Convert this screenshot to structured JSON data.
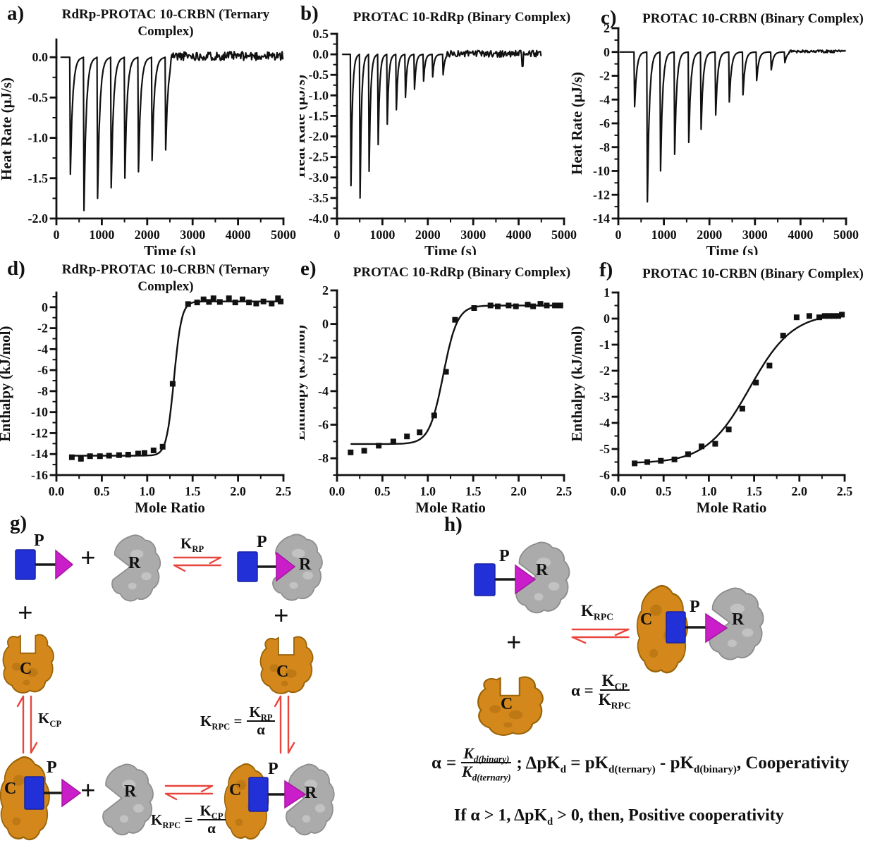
{
  "chart_data": [
    {
      "id": "a",
      "panel_letter": "a)",
      "type": "line",
      "subtype": "itc-thermogram",
      "title_lines": [
        "RdRp-PROTAC 10-CRBN (Ternary",
        "Complex)"
      ],
      "xlabel": "Time (s)",
      "ylabel": "Heat Rate (μJ/s)",
      "xlim": [
        0,
        5000
      ],
      "ylim": [
        -2.0,
        0.22
      ],
      "xticks": [
        0,
        1000,
        2000,
        3000,
        4000,
        5000
      ],
      "yticks": [
        0.0,
        -0.5,
        -1.0,
        -1.5,
        -2.0
      ],
      "xminor": 500,
      "yminor": 0.25,
      "x_decimals": 0,
      "y_decimals": 1,
      "spikes": {
        "times": [
          300,
          600,
          900,
          1200,
          1500,
          1800,
          2100,
          2400
        ],
        "depths": [
          -1.45,
          -1.9,
          -1.75,
          -1.62,
          -1.5,
          -1.42,
          -1.28,
          -1.15
        ]
      },
      "trace": {
        "start": 90,
        "end": 5000,
        "noise_start": 2540,
        "noise_amp": 0.055,
        "noise_mean": 0.015,
        "recovery_tau": 70,
        "seed": 11
      },
      "line_color": "#111111"
    },
    {
      "id": "b",
      "panel_letter": "b)",
      "type": "line",
      "subtype": "itc-thermogram",
      "title_lines": [
        "PROTAC 10-RdRp (Binary Complex)"
      ],
      "xlabel": "Time (s)",
      "ylabel": "Heat Rate (μJ/s)",
      "xlim": [
        0,
        5000
      ],
      "ylim": [
        -4.0,
        0.5
      ],
      "xticks": [
        0,
        1000,
        2000,
        3000,
        4000,
        5000
      ],
      "yticks": [
        0.5,
        0.0,
        -0.5,
        -1.0,
        -1.5,
        -2.0,
        -2.5,
        -3.0,
        -3.5,
        -4.0
      ],
      "xminor": 500,
      "yminor": 0.25,
      "x_decimals": 0,
      "y_decimals": 1,
      "spikes": {
        "times": [
          300,
          500,
          700,
          900,
          1100,
          1300,
          1500,
          1700,
          1900,
          2100,
          2330
        ],
        "depths": [
          -3.2,
          -3.5,
          -2.85,
          -2.2,
          -1.7,
          -1.35,
          -1.05,
          -0.85,
          -0.65,
          -0.55,
          -0.5
        ]
      },
      "trace": {
        "start": 110,
        "end": 4500,
        "noise_start": 2430,
        "noise_amp": 0.08,
        "noise_mean": 0.015,
        "recovery_tau": 46,
        "seed": 23,
        "dip_t": 4090,
        "dip_v": -0.29
      },
      "line_color": "#111111"
    },
    {
      "id": "c",
      "panel_letter": "c)",
      "type": "line",
      "subtype": "itc-thermogram",
      "title_lines": [
        "PROTAC 10-CRBN (Binary Complex)"
      ],
      "xlabel": "Time (s)",
      "ylabel": "Heat Rate (μJ/s)",
      "xlim": [
        0,
        5000
      ],
      "ylim": [
        -14,
        2
      ],
      "xticks": [
        0,
        1000,
        2000,
        3000,
        4000,
        5000
      ],
      "yticks": [
        2,
        0,
        -2,
        -4,
        -6,
        -8,
        -10,
        -12,
        -14
      ],
      "xminor": 500,
      "yminor": 1,
      "x_decimals": 0,
      "y_decimals": 0,
      "spikes": {
        "times": [
          350,
          630,
          920,
          1230,
          1540,
          1810,
          2130,
          2430,
          2730,
          3030,
          3350,
          3650
        ],
        "depths": [
          -4.6,
          -12.6,
          -10.0,
          -8.6,
          -7.6,
          -6.5,
          -5.3,
          -4.2,
          -3.6,
          -2.4,
          -1.5,
          -0.9
        ]
      },
      "trace": {
        "start": 30,
        "end": 5000,
        "noise_start": 3760,
        "noise_amp": 0.11,
        "noise_mean": 0.05,
        "recovery_tau": 62,
        "seed": 37
      },
      "line_color": "#111111"
    },
    {
      "id": "d",
      "panel_letter": "d)",
      "type": "scatter",
      "subtype": "binding-isotherm",
      "title_lines": [
        "RdRp-PROTAC 10-CRBN (Ternary",
        "Complex)"
      ],
      "xlabel": "Mole Ratio",
      "ylabel": "Enthalpy (kJ/mol)",
      "xlim": [
        0,
        2.5
      ],
      "ylim": [
        -16,
        1.4
      ],
      "xticks": [
        0.0,
        0.5,
        1.0,
        1.5,
        2.0,
        2.5
      ],
      "yticks": [
        0,
        -2,
        -4,
        -6,
        -8,
        -10,
        -12,
        -14,
        -16
      ],
      "xminor": 0.25,
      "yminor": 1,
      "x_decimals": 1,
      "y_decimals": 0,
      "points": [
        [
          0.17,
          -14.3
        ],
        [
          0.27,
          -14.45
        ],
        [
          0.37,
          -14.2
        ],
        [
          0.48,
          -14.2
        ],
        [
          0.58,
          -14.15
        ],
        [
          0.69,
          -14.1
        ],
        [
          0.79,
          -14.05
        ],
        [
          0.9,
          -13.95
        ],
        [
          0.97,
          -13.9
        ],
        [
          1.07,
          -13.65
        ],
        [
          1.17,
          -13.3
        ],
        [
          1.28,
          -7.3
        ],
        [
          1.45,
          0.3
        ],
        [
          1.55,
          0.45
        ],
        [
          1.62,
          0.75
        ],
        [
          1.68,
          0.5
        ],
        [
          1.73,
          0.85
        ],
        [
          1.8,
          0.5
        ],
        [
          1.9,
          0.85
        ],
        [
          1.97,
          0.45
        ],
        [
          2.05,
          0.75
        ],
        [
          2.12,
          0.45
        ],
        [
          2.2,
          0.35
        ],
        [
          2.28,
          0.55
        ],
        [
          2.37,
          0.35
        ],
        [
          2.44,
          0.85
        ],
        [
          2.47,
          0.55
        ]
      ],
      "fit": {
        "model": "sigmoid",
        "low": -14.15,
        "high": 0.55,
        "x0": 1.295,
        "k": 24,
        "range": [
          0.17,
          2.47
        ]
      },
      "line_color": "#111111"
    },
    {
      "id": "e",
      "panel_letter": "e)",
      "type": "scatter",
      "subtype": "binding-isotherm",
      "title_lines": [
        "PROTAC 10-RdRp (Binary Complex)"
      ],
      "xlabel": "Mole Ratio",
      "ylabel": "Enthalpy (kJ/mol)",
      "xlim": [
        0,
        2.5
      ],
      "ylim": [
        -9,
        2
      ],
      "xticks": [
        0.0,
        0.5,
        1.0,
        1.5,
        2.0,
        2.5
      ],
      "yticks": [
        2,
        0,
        -2,
        -4,
        -6,
        -8
      ],
      "xminor": 0.25,
      "yminor": 1,
      "x_decimals": 1,
      "y_decimals": 0,
      "points": [
        [
          0.15,
          -7.65
        ],
        [
          0.3,
          -7.55
        ],
        [
          0.46,
          -7.25
        ],
        [
          0.62,
          -7.0
        ],
        [
          0.77,
          -6.7
        ],
        [
          0.91,
          -6.45
        ],
        [
          1.07,
          -5.45
        ],
        [
          1.2,
          -2.85
        ],
        [
          1.3,
          0.25
        ],
        [
          1.51,
          0.95
        ],
        [
          1.69,
          1.1
        ],
        [
          1.77,
          1.05
        ],
        [
          1.89,
          1.1
        ],
        [
          1.97,
          1.05
        ],
        [
          2.1,
          1.15
        ],
        [
          2.16,
          1.05
        ],
        [
          2.24,
          1.2
        ],
        [
          2.31,
          1.1
        ],
        [
          2.4,
          1.1
        ],
        [
          2.46,
          1.1
        ]
      ],
      "fit": {
        "model": "sigmoid",
        "low": -7.15,
        "high": 1.1,
        "x0": 1.17,
        "k": 13,
        "range": [
          0.15,
          2.46
        ]
      },
      "line_color": "#111111"
    },
    {
      "id": "f",
      "panel_letter": "f)",
      "type": "scatter",
      "subtype": "binding-isotherm",
      "title_lines": [
        "PROTAC 10-CRBN (Binary Complex)"
      ],
      "xlabel": "Mole Ratio",
      "ylabel": "Enthalpy (kJ/mol)",
      "xlim": [
        0,
        2.5
      ],
      "ylim": [
        -6,
        1
      ],
      "xticks": [
        0.0,
        0.5,
        1.0,
        1.5,
        2.0,
        2.5
      ],
      "yticks": [
        1,
        0,
        -1,
        -2,
        -3,
        -4,
        -5,
        -6
      ],
      "xminor": 0.25,
      "yminor": 0.5,
      "x_decimals": 1,
      "y_decimals": 0,
      "points": [
        [
          0.18,
          -5.55
        ],
        [
          0.32,
          -5.5
        ],
        [
          0.47,
          -5.45
        ],
        [
          0.62,
          -5.4
        ],
        [
          0.77,
          -5.2
        ],
        [
          0.92,
          -4.9
        ],
        [
          1.07,
          -4.8
        ],
        [
          1.22,
          -4.25
        ],
        [
          1.37,
          -3.45
        ],
        [
          1.52,
          -2.45
        ],
        [
          1.67,
          -1.8
        ],
        [
          1.82,
          -0.65
        ],
        [
          1.97,
          0.05
        ],
        [
          2.11,
          0.1
        ],
        [
          2.22,
          0.05
        ],
        [
          2.28,
          0.1
        ],
        [
          2.33,
          0.1
        ],
        [
          2.38,
          0.1
        ],
        [
          2.43,
          0.1
        ],
        [
          2.47,
          0.15
        ]
      ],
      "fit": {
        "model": "sigmoid",
        "low": -5.55,
        "high": 0.22,
        "x0": 1.45,
        "k": 4.2,
        "range": [
          0.18,
          2.47
        ]
      },
      "line_color": "#111111"
    }
  ],
  "diagram": {
    "panel_g_letter": "g)",
    "panel_h_letter": "h)",
    "protac_label": "P",
    "rdrp_label": "R",
    "crbn_label": "C",
    "plus": "+",
    "k_rp": "K_{RP}",
    "k_cp": "K_{CP}",
    "k_rpc": "K_{RPC}",
    "eq_krpc_krp": {
      "lhs": "K_{RPC} =",
      "num": "K_{RP}",
      "den": "α"
    },
    "eq_krpc_kcp": {
      "lhs": "K_{RPC} =",
      "num": "K_{CP}",
      "den": "α"
    },
    "eq_alpha": {
      "lhs": "α =",
      "num": "K_{CP}",
      "den": "K_{RPC}"
    },
    "equation_line1": {
      "alpha": "α",
      "equals": "=",
      "num": "K_{d(binary)}",
      "den": "K_{d(ternary)}",
      "rest": "; ΔpK_{d} = pK_{d(ternary)} - pK_{d(binary)}, Cooperativity"
    },
    "equation_line2": "If α > 1, ΔpK_{d} > 0, then, Positive cooperativity",
    "colors": {
      "protac_anchor": "#2230d8",
      "protac_warhead": "#cb1ecb",
      "rdrp": "#ababab",
      "crbn": "#d4881c",
      "arrow": "#e8453c"
    }
  }
}
